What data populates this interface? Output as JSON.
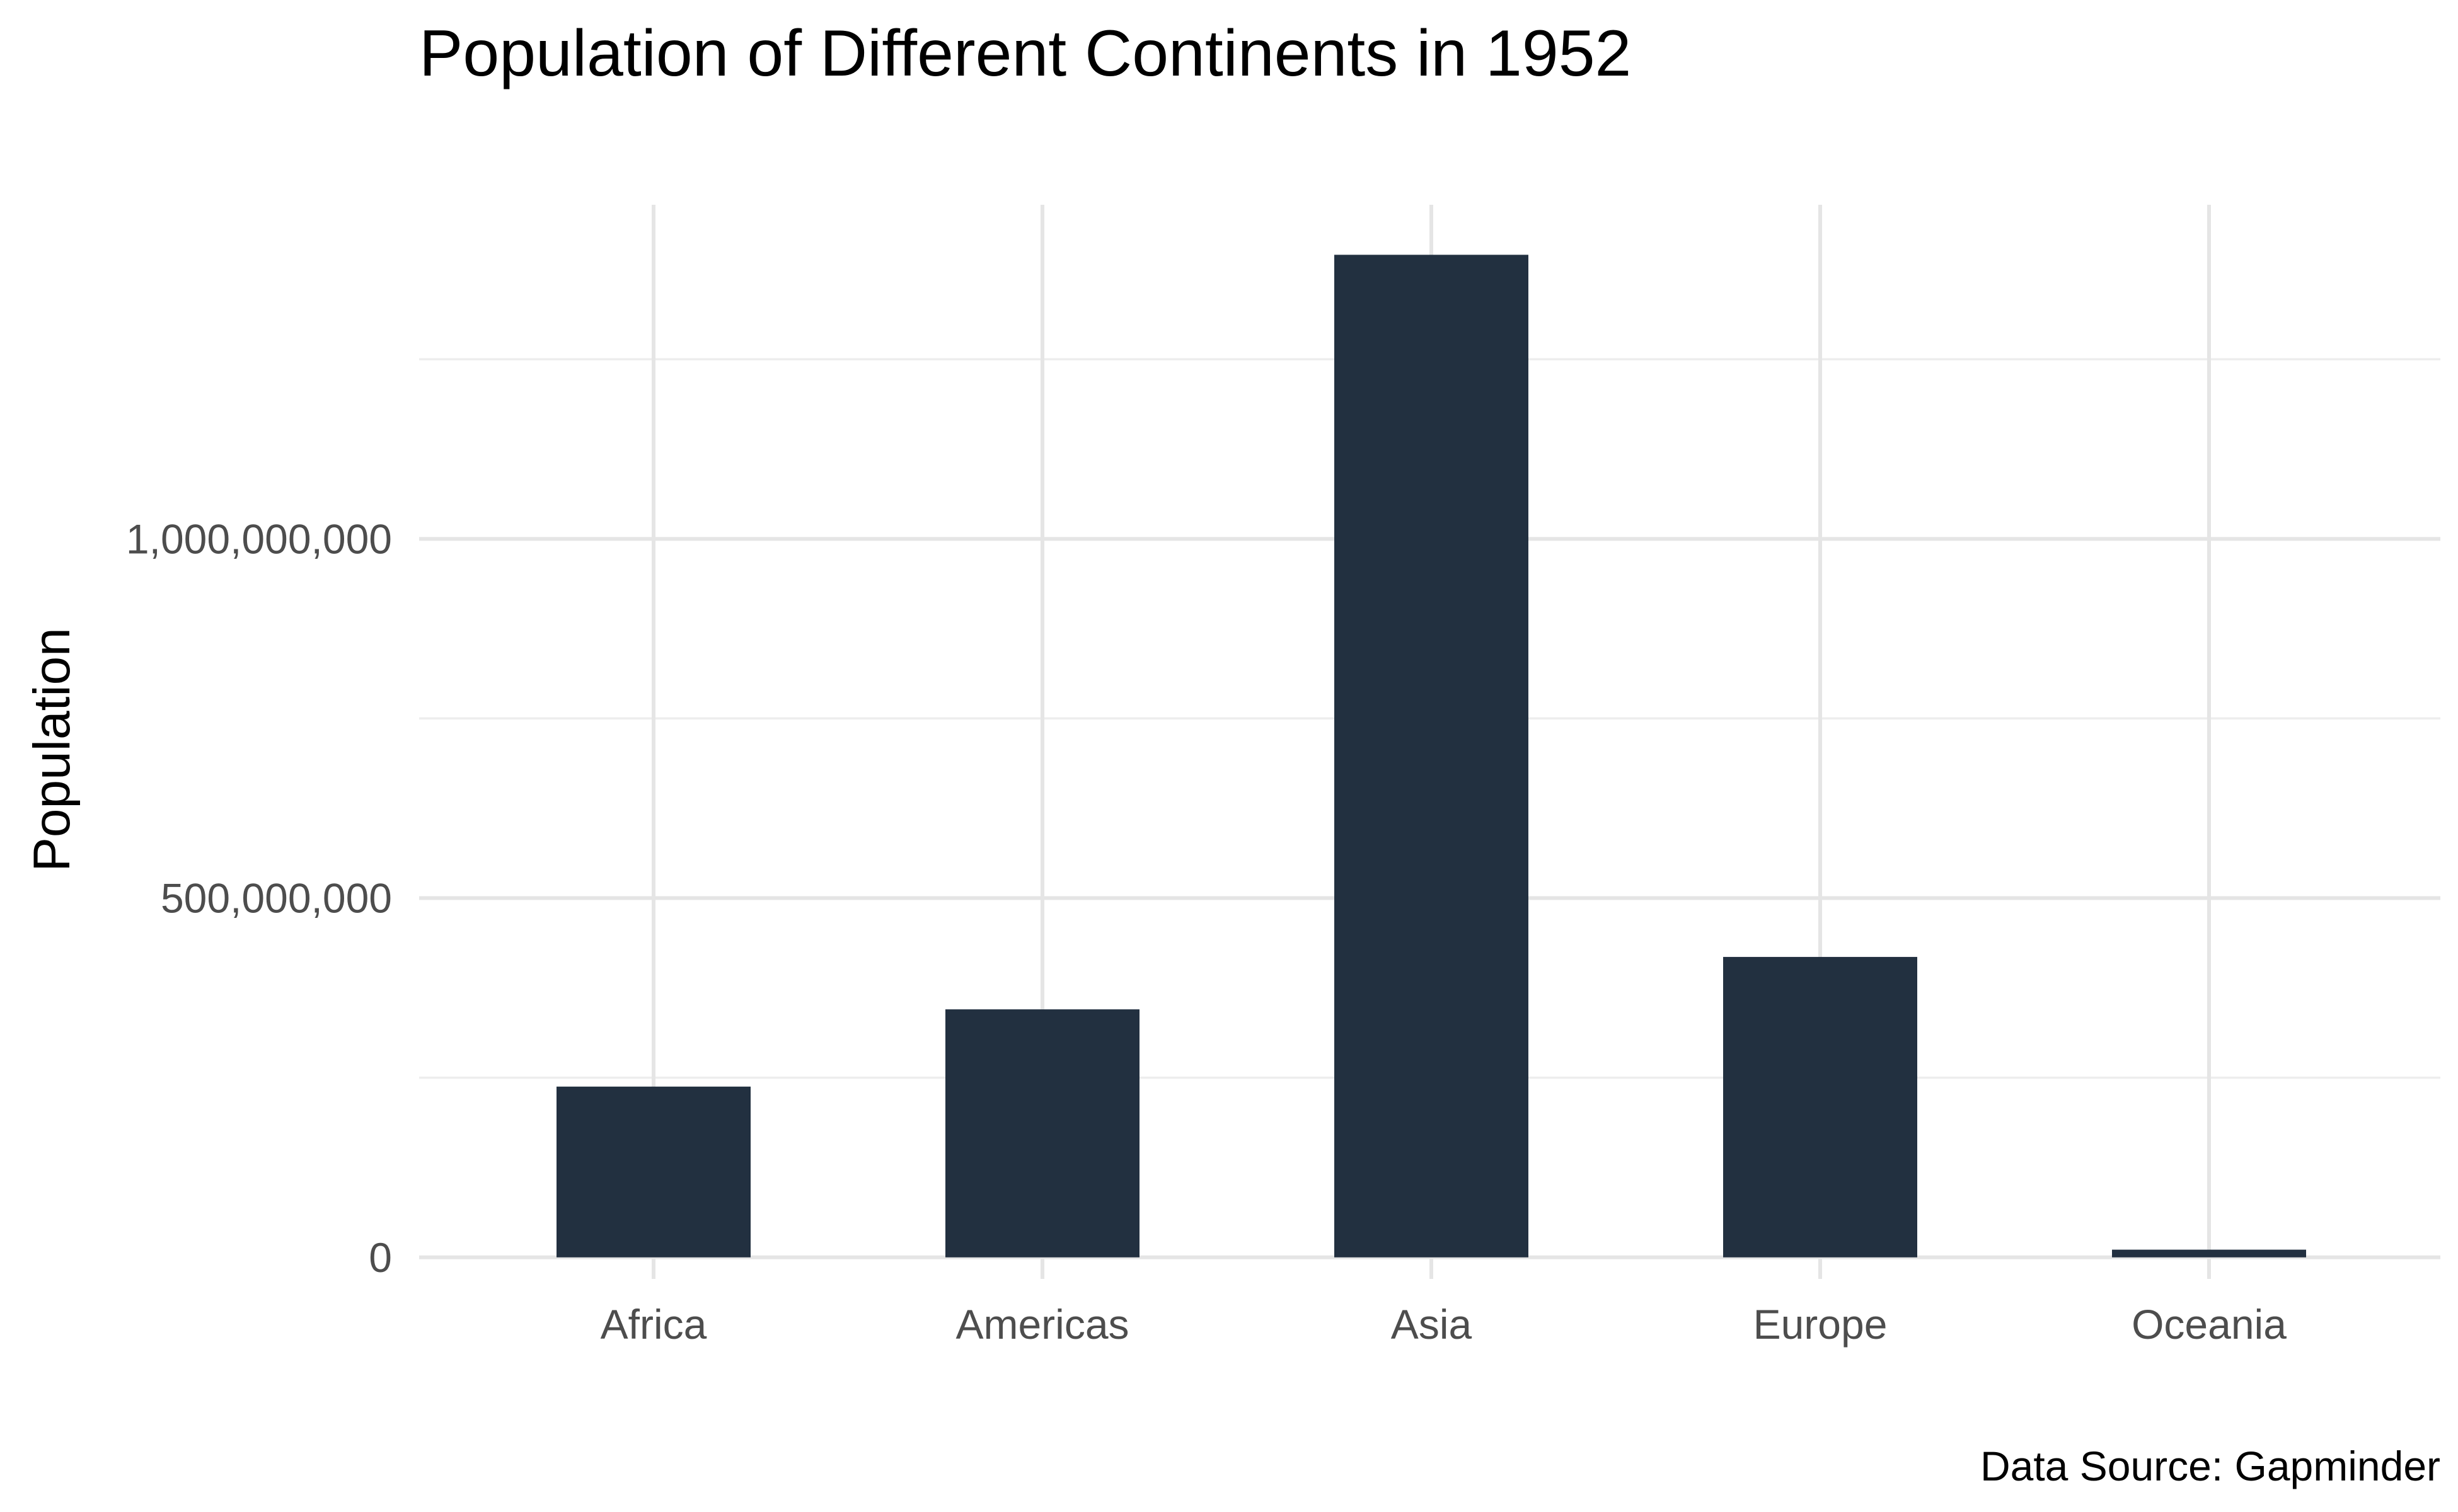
{
  "chart_data": {
    "type": "bar",
    "title": "Population of Different Continents in 1952",
    "caption": "Data Source: Gapminder",
    "xlabel": "",
    "ylabel": "Population",
    "categories": [
      "Africa",
      "Americas",
      "Asia",
      "Europe",
      "Oceania"
    ],
    "values": [
      237640501,
      345152446,
      1395357352,
      418120846,
      10686006
    ],
    "ylim": [
      -30000000,
      1465000000
    ],
    "yticks": [
      0,
      500000000,
      1000000000
    ],
    "ytick_labels": [
      "0",
      "500,000,000",
      "1,000,000,000"
    ],
    "yminor_ticks": [
      250000000,
      750000000,
      1250000000
    ],
    "grid": true,
    "legend": "none",
    "bar_color": "#223040",
    "grid_color": "#e5e5e5"
  }
}
